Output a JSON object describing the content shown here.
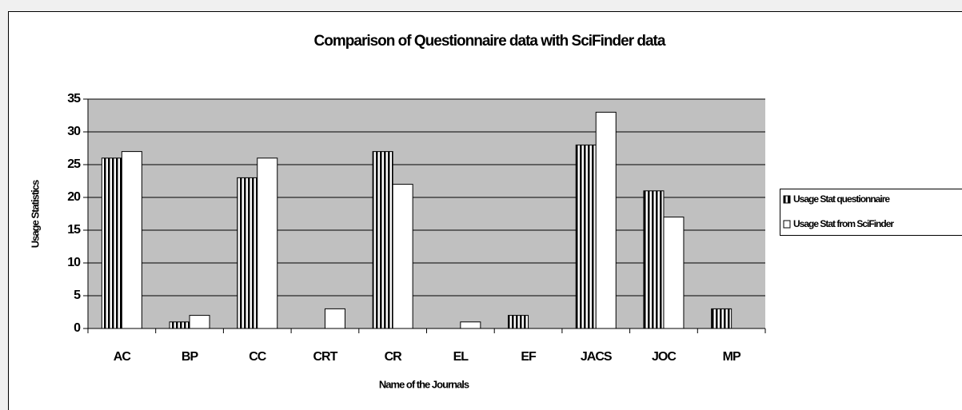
{
  "chart_data": {
    "type": "bar",
    "title": "Comparison of Questionnaire data with SciFinder data",
    "x_label": "Name of the Journals",
    "y_label": "Usage Statistics",
    "categories": [
      "AC",
      "BP",
      "CC",
      "CRT",
      "CR",
      "EL",
      "EF",
      "JACS",
      "JOC",
      "MP"
    ],
    "series": [
      {
        "name": "Usage Stat questionnaire",
        "color": "#000000",
        "pattern": "vertical-lines",
        "values": [
          26,
          1,
          23,
          0,
          27,
          0,
          2,
          28,
          21,
          3
        ]
      },
      {
        "name": "Usage Stat from SciFinder",
        "color": "#ffffff",
        "values": [
          27,
          2,
          26,
          3,
          22,
          1,
          0,
          33,
          17,
          0
        ]
      }
    ],
    "ylim": [
      0,
      35
    ],
    "yticks": [
      0,
      5,
      10,
      15,
      20,
      25,
      30,
      35
    ],
    "grid": true,
    "plot_background": "#c0c0c0",
    "legend": "right"
  }
}
